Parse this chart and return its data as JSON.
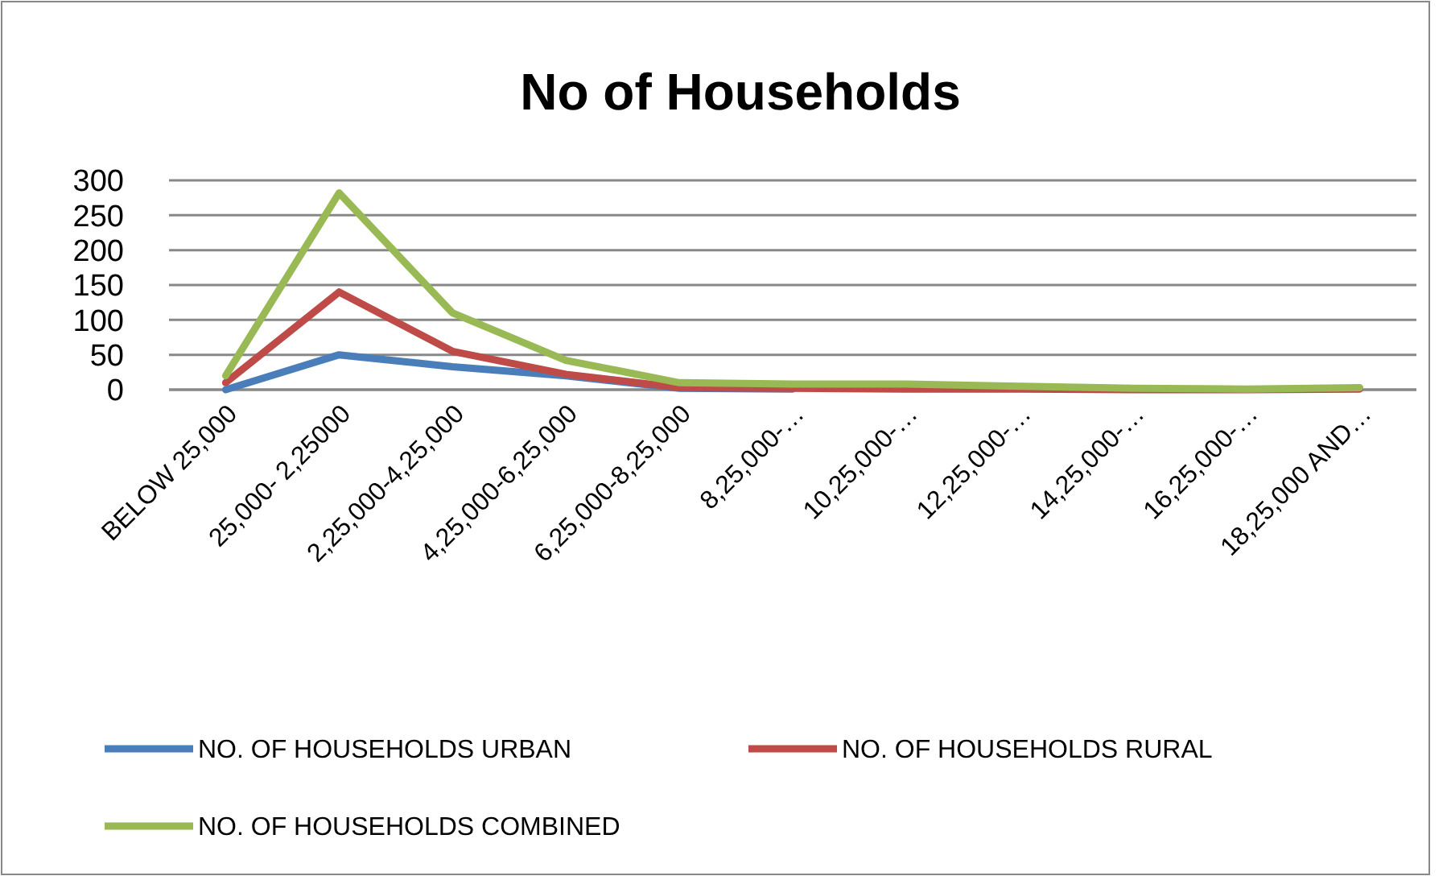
{
  "chart_data": {
    "type": "line",
    "title": "No of Households",
    "categories": [
      "BELOW 25,000",
      "25,000- 2,25000",
      "2,25,000-4,25,000",
      "4,25,000-6,25,000",
      "6,25,000-8,25,000",
      "8,25,000-…",
      "10,25,000-…",
      "12,25,000-…",
      "14,25,000-…",
      "16,25,000-…",
      "18,25,000 AND…"
    ],
    "series": [
      {
        "name": "NO. OF HOUSEHOLDS URBAN",
        "color": "#4a7ebb",
        "values": [
          0,
          50,
          33,
          20,
          2,
          1,
          null,
          null,
          null,
          null,
          null
        ]
      },
      {
        "name": "NO. OF HOUSEHOLDS RURAL",
        "color": "#be4b48",
        "values": [
          10,
          140,
          55,
          22,
          3,
          2,
          1,
          1,
          0,
          0,
          1
        ]
      },
      {
        "name": "NO. OF HOUSEHOLDS COMBINED",
        "color": "#98b954",
        "values": [
          20,
          282,
          110,
          42,
          10,
          8,
          8,
          5,
          2,
          1,
          3
        ]
      }
    ],
    "ylim": [
      0,
      300
    ],
    "yticks": [
      0,
      50,
      100,
      150,
      200,
      250,
      300
    ],
    "grid": "y",
    "legend": "bottom",
    "marker": "none",
    "line_style": "solid"
  }
}
